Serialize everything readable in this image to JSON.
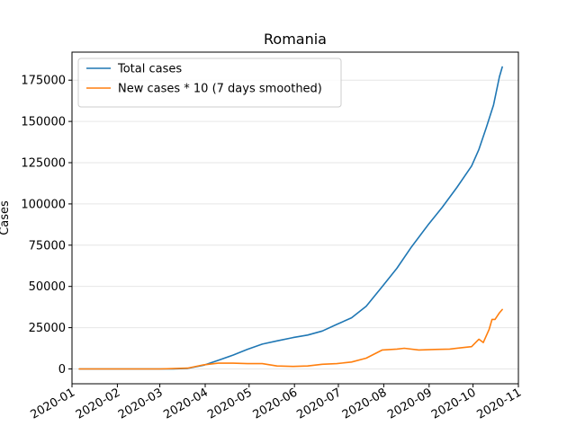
{
  "chart_data": {
    "type": "line",
    "title": "Romania",
    "xlabel": "",
    "ylabel": "Cases",
    "grid": "horizontal",
    "legend_position": "top-left",
    "xlim": [
      "2020-01-01",
      "2020-11-01"
    ],
    "ylim": [
      -9000,
      192000
    ],
    "x_ticks": [
      "2020-01",
      "2020-02",
      "2020-03",
      "2020-04",
      "2020-05",
      "2020-06",
      "2020-07",
      "2020-08",
      "2020-09",
      "2020-10",
      "2020-11"
    ],
    "x_tick_dates": [
      "2020-01-01",
      "2020-02-01",
      "2020-03-01",
      "2020-04-01",
      "2020-05-01",
      "2020-06-01",
      "2020-07-01",
      "2020-08-01",
      "2020-09-01",
      "2020-10-01",
      "2020-11-01"
    ],
    "y_ticks": [
      0,
      25000,
      50000,
      75000,
      100000,
      125000,
      150000,
      175000
    ],
    "y_tick_labels": [
      "0",
      "25000",
      "50000",
      "75000",
      "100000",
      "125000",
      "150000",
      "175000"
    ],
    "series": [
      {
        "name": "Total cases",
        "color": "#1f77b4",
        "points": [
          [
            "2020-01-06",
            0
          ],
          [
            "2020-02-01",
            0
          ],
          [
            "2020-02-26",
            0
          ],
          [
            "2020-03-10",
            20
          ],
          [
            "2020-03-20",
            300
          ],
          [
            "2020-03-31",
            2200
          ],
          [
            "2020-04-10",
            5200
          ],
          [
            "2020-04-20",
            8400
          ],
          [
            "2020-04-30",
            11900
          ],
          [
            "2020-05-10",
            15000
          ],
          [
            "2020-05-20",
            17000
          ],
          [
            "2020-05-31",
            19000
          ],
          [
            "2020-06-10",
            20500
          ],
          [
            "2020-06-20",
            23000
          ],
          [
            "2020-06-30",
            27000
          ],
          [
            "2020-07-10",
            31000
          ],
          [
            "2020-07-20",
            38000
          ],
          [
            "2020-07-31",
            50000
          ],
          [
            "2020-08-10",
            61000
          ],
          [
            "2020-08-20",
            74000
          ],
          [
            "2020-08-31",
            87000
          ],
          [
            "2020-09-10",
            98000
          ],
          [
            "2020-09-20",
            110000
          ],
          [
            "2020-09-30",
            123000
          ],
          [
            "2020-10-05",
            133000
          ],
          [
            "2020-10-10",
            146000
          ],
          [
            "2020-10-15",
            160000
          ],
          [
            "2020-10-19",
            177000
          ],
          [
            "2020-10-21",
            183000
          ]
        ]
      },
      {
        "name": "New cases * 10 (7 days smoothed)",
        "color": "#ff7f0e",
        "points": [
          [
            "2020-01-06",
            0
          ],
          [
            "2020-02-01",
            0
          ],
          [
            "2020-03-01",
            0
          ],
          [
            "2020-03-20",
            500
          ],
          [
            "2020-03-31",
            2500
          ],
          [
            "2020-04-10",
            3500
          ],
          [
            "2020-04-20",
            3500
          ],
          [
            "2020-04-30",
            3200
          ],
          [
            "2020-05-10",
            3200
          ],
          [
            "2020-05-20",
            1800
          ],
          [
            "2020-05-31",
            1500
          ],
          [
            "2020-06-10",
            1800
          ],
          [
            "2020-06-20",
            2800
          ],
          [
            "2020-06-30",
            3200
          ],
          [
            "2020-07-10",
            4200
          ],
          [
            "2020-07-20",
            6500
          ],
          [
            "2020-07-31",
            11500
          ],
          [
            "2020-08-10",
            12000
          ],
          [
            "2020-08-15",
            12500
          ],
          [
            "2020-08-25",
            11500
          ],
          [
            "2020-09-05",
            11800
          ],
          [
            "2020-09-15",
            12000
          ],
          [
            "2020-09-25",
            13000
          ],
          [
            "2020-09-30",
            13500
          ],
          [
            "2020-10-05",
            18000
          ],
          [
            "2020-10-08",
            16000
          ],
          [
            "2020-10-12",
            24000
          ],
          [
            "2020-10-14",
            30000
          ],
          [
            "2020-10-16",
            30000
          ],
          [
            "2020-10-19",
            34000
          ],
          [
            "2020-10-21",
            36000
          ]
        ]
      }
    ]
  }
}
